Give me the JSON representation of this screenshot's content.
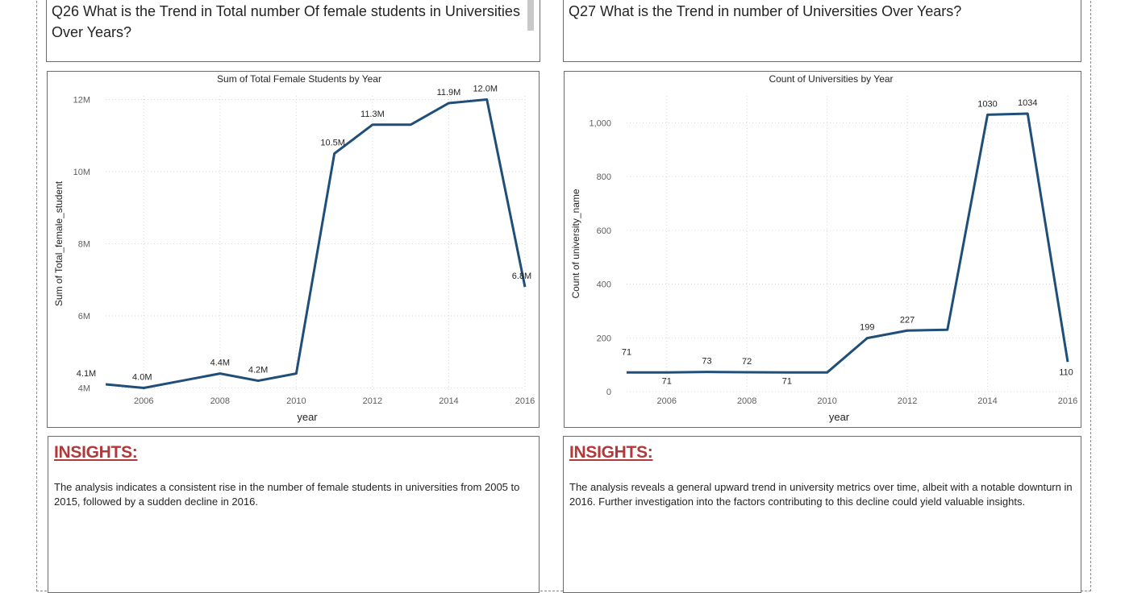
{
  "panels": [
    {
      "question": "Q26 What is the Trend in Total number Of female students in Universities Over Years?",
      "insights_title": "INSIGHTS:",
      "insights_text": "The analysis indicates a consistent rise in the number of female students in universities from 2005 to 2015, followed by a sudden decline in 2016."
    },
    {
      "question": "Q27 What is the Trend in number of Universities Over Years?",
      "insights_title": "INSIGHTS:",
      "insights_text": "The analysis reveals a general upward trend in university metrics over time, albeit with a notable downturn in 2016. Further investigation into the factors contributing to this decline could yield valuable insights."
    }
  ],
  "colors": {
    "line": "#1f4e79",
    "insight_title": "#b03a3a"
  },
  "chart_data": [
    {
      "type": "line",
      "title": "Sum of Total Female Students by Year",
      "xlabel": "year",
      "ylabel": "Sum of Total_female_student",
      "x": [
        2005,
        2006,
        2007,
        2008,
        2009,
        2010,
        2011,
        2012,
        2013,
        2014,
        2015,
        2016
      ],
      "values": [
        4.1,
        4.0,
        4.2,
        4.4,
        4.2,
        4.4,
        10.5,
        11.3,
        11.3,
        11.9,
        12.0,
        6.8
      ],
      "data_labels": [
        "4.1M",
        "4.0M",
        "",
        "4.4M",
        "4.2M",
        "",
        "10.5M",
        "11.3M",
        "",
        "11.9M",
        "12.0M",
        "6.8M"
      ],
      "x_ticks": [
        2006,
        2008,
        2010,
        2012,
        2014,
        2016
      ],
      "y_ticks": [
        4,
        6,
        8,
        10,
        12
      ],
      "y_tick_labels": [
        "4M",
        "6M",
        "8M",
        "10M",
        "12M"
      ],
      "ylim": [
        3.9,
        12.1
      ],
      "xlim": [
        2005,
        2016
      ],
      "grid": true
    },
    {
      "type": "line",
      "title": "Count of Universities by Year",
      "xlabel": "year",
      "ylabel": "Count of university_name",
      "x": [
        2005,
        2006,
        2007,
        2008,
        2009,
        2010,
        2011,
        2012,
        2013,
        2014,
        2015,
        2016
      ],
      "values": [
        71,
        71,
        73,
        72,
        71,
        71,
        199,
        227,
        230,
        1030,
        1034,
        110
      ],
      "data_labels": [
        "71",
        "71",
        "73",
        "72",
        "71",
        "",
        "199",
        "227",
        "",
        "1030",
        "1034",
        "110"
      ],
      "x_ticks": [
        2006,
        2008,
        2010,
        2012,
        2014,
        2016
      ],
      "y_ticks": [
        0,
        200,
        400,
        600,
        800,
        1000
      ],
      "y_tick_labels": [
        "0",
        "200",
        "400",
        "600",
        "800",
        "1,000"
      ],
      "ylim": [
        0,
        1100
      ],
      "xlim": [
        2005,
        2016
      ],
      "grid": true
    }
  ]
}
